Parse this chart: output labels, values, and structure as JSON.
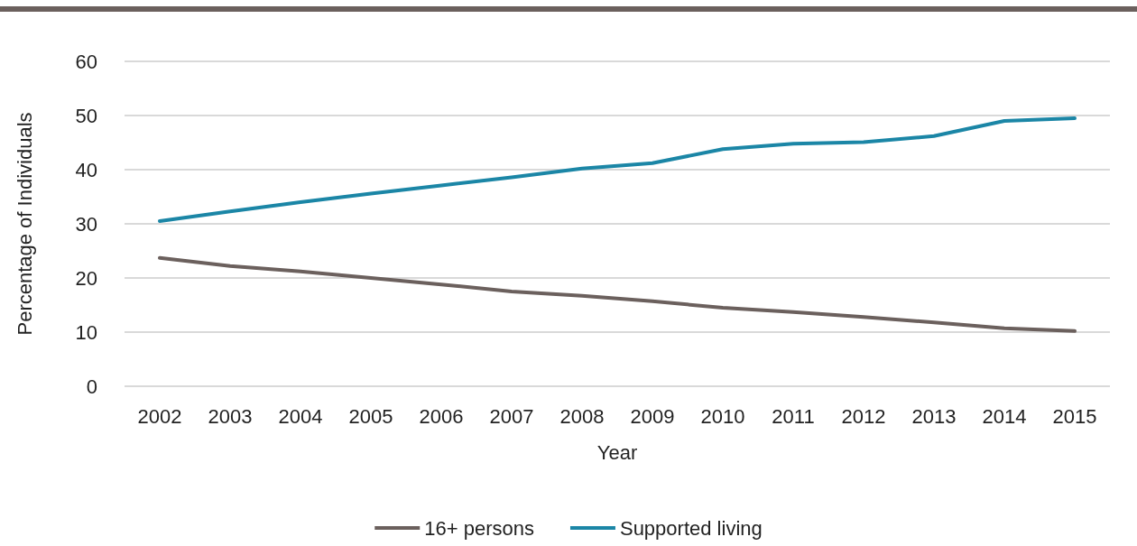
{
  "chart_data": {
    "type": "line",
    "xlabel": "Year",
    "ylabel": "Percentage of Individuals",
    "categories": [
      "2002",
      "2003",
      "2004",
      "2005",
      "2006",
      "2007",
      "2008",
      "2009",
      "2010",
      "2011",
      "2012",
      "2013",
      "2014",
      "2015"
    ],
    "series": [
      {
        "name": "16+ persons",
        "color": "#6b605d",
        "values": [
          23.7,
          22.2,
          21.2,
          20,
          18.8,
          17.5,
          16.7,
          15.7,
          14.5,
          13.7,
          12.8,
          11.8,
          10.7,
          10.2
        ]
      },
      {
        "name": "Supported living",
        "color": "#1b86a6",
        "values": [
          30.5,
          32.3,
          34,
          35.6,
          37.1,
          38.6,
          40.2,
          41.2,
          43.8,
          44.8,
          45.1,
          46.2,
          49,
          49.5
        ]
      }
    ],
    "ylim": [
      0,
      60
    ],
    "yticks": [
      0,
      10,
      20,
      30,
      40,
      50,
      60
    ],
    "grid": "y",
    "legend": "bottom",
    "marker": "none",
    "line_style": "solid"
  }
}
